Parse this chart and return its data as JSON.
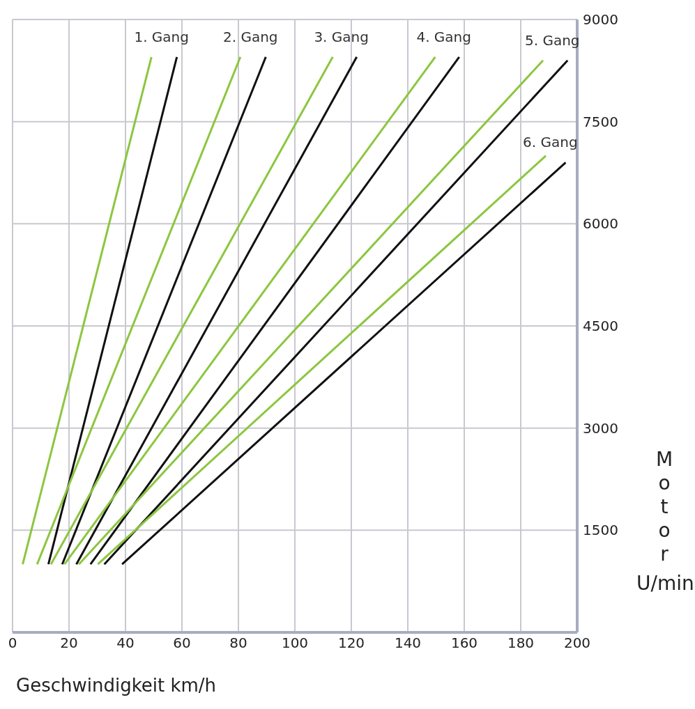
{
  "chart_data": {
    "type": "line",
    "xlabel": "Geschwindigkeit km/h",
    "ylabel": "Motor U/min",
    "xlim": [
      0,
      200
    ],
    "xticks": [
      0,
      20,
      40,
      60,
      80,
      100,
      120,
      140,
      160,
      180,
      200
    ],
    "ylim": [
      0,
      9000
    ],
    "yticks": [
      1500,
      3000,
      4500,
      6000,
      7500,
      9000
    ],
    "grid": true,
    "marker": "none",
    "line_style": "solid",
    "series": [
      {
        "color": "#8cc63f",
        "x": [
          3.6,
          49.2
        ],
        "values": [
          1000,
          8450
        ]
      },
      {
        "name": "1. Gang",
        "color": "#111111",
        "x": [
          12.7,
          58.2
        ],
        "values": [
          1000,
          8450
        ]
      },
      {
        "color": "#8cc63f",
        "x": [
          8.7,
          80.7
        ],
        "values": [
          1000,
          8450
        ]
      },
      {
        "name": "2. Gang",
        "color": "#111111",
        "x": [
          17.6,
          89.7
        ],
        "values": [
          1000,
          8450
        ]
      },
      {
        "color": "#8cc63f",
        "x": [
          13.6,
          113.4
        ],
        "values": [
          1000,
          8450
        ]
      },
      {
        "name": "3. Gang",
        "color": "#111111",
        "x": [
          22.6,
          121.9
        ],
        "values": [
          1000,
          8450
        ]
      },
      {
        "color": "#8cc63f",
        "x": [
          18.4,
          149.7
        ],
        "values": [
          1000,
          8450
        ]
      },
      {
        "name": "4. Gang",
        "color": "#111111",
        "x": [
          27.6,
          158.2
        ],
        "values": [
          1000,
          8450
        ]
      },
      {
        "color": "#8cc63f",
        "x": [
          23.5,
          187.9
        ],
        "values": [
          1000,
          8400
        ]
      },
      {
        "name": "5. Gang",
        "color": "#111111",
        "x": [
          32.5,
          196.6
        ],
        "values": [
          1000,
          8400
        ]
      },
      {
        "color": "#8cc63f",
        "x": [
          30.2,
          188.9
        ],
        "values": [
          1000,
          7000
        ]
      },
      {
        "name": "6. Gang",
        "color": "#111111",
        "x": [
          38.8,
          195.9
        ],
        "values": [
          1000,
          6900
        ]
      }
    ]
  }
}
